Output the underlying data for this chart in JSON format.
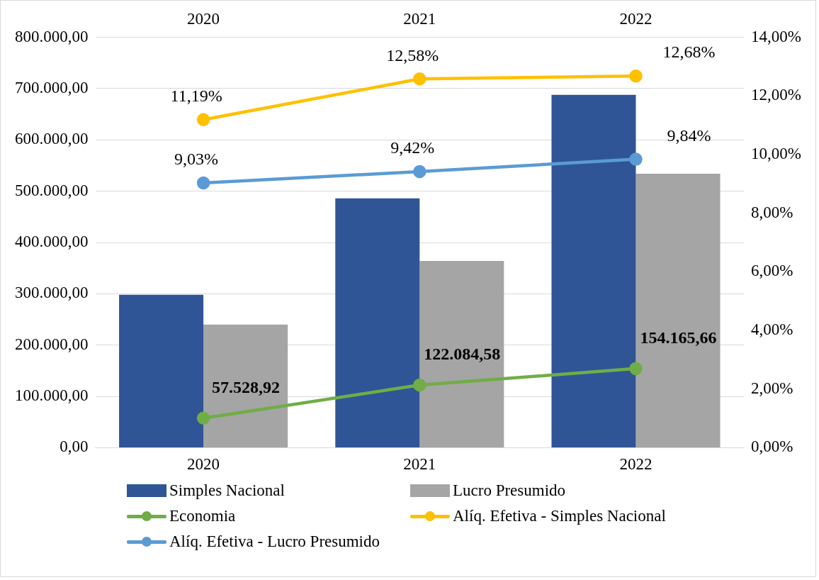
{
  "chart_data": {
    "type": "bar",
    "categories": [
      "2020",
      "2021",
      "2022"
    ],
    "series": [
      {
        "name": "Simples Nacional",
        "color": "#2f5597",
        "values": [
          298000,
          486000,
          688000
        ]
      },
      {
        "name": "Lucro Presumido",
        "color": "#a5a5a5",
        "values": [
          240000,
          364000,
          534000
        ]
      },
      {
        "name": "Economia",
        "type": "line",
        "color": "#70ad47",
        "values": [
          57528.92,
          122084.58,
          154165.66
        ],
        "value_labels": [
          "57.528,92",
          "122.084,58",
          "154.165,66"
        ]
      },
      {
        "name": "Alíq. Efetiva - Simples Nacional",
        "type": "line",
        "axis": "y2",
        "color": "#ffc000",
        "values": [
          11.19,
          12.58,
          12.68
        ],
        "value_labels": [
          "11,19%",
          "12,58%",
          "12,68%"
        ]
      },
      {
        "name": "Alíq. Efetiva - Lucro Presumido",
        "type": "line",
        "axis": "y2",
        "color": "#5b9bd5",
        "values": [
          9.03,
          9.42,
          9.84
        ],
        "value_labels": [
          "9,03%",
          "9,42%",
          "9,84%"
        ]
      }
    ],
    "ylim": [
      0,
      800000
    ],
    "yticks": [
      {
        "value": 0,
        "label": "0,00"
      },
      {
        "value": 100000,
        "label": "100.000,00"
      },
      {
        "value": 200000,
        "label": "200.000,00"
      },
      {
        "value": 300000,
        "label": "300.000,00"
      },
      {
        "value": 400000,
        "label": "400.000,00"
      },
      {
        "value": 500000,
        "label": "500.000,00"
      },
      {
        "value": 600000,
        "label": "600.000,00"
      },
      {
        "value": 700000,
        "label": "700.000,00"
      },
      {
        "value": 800000,
        "label": "800.000,00"
      }
    ],
    "y2lim": [
      0,
      14
    ],
    "y2ticks": [
      {
        "value": 0,
        "label": "0,00%"
      },
      {
        "value": 2,
        "label": "2,00%"
      },
      {
        "value": 4,
        "label": "4,00%"
      },
      {
        "value": 6,
        "label": "6,00%"
      },
      {
        "value": 8,
        "label": "8,00%"
      },
      {
        "value": 10,
        "label": "10,00%"
      },
      {
        "value": 12,
        "label": "12,00%"
      },
      {
        "value": 14,
        "label": "14,00%"
      }
    ],
    "grid": "y",
    "legend": "bottom",
    "marker": "circle",
    "line_style": "solid"
  }
}
